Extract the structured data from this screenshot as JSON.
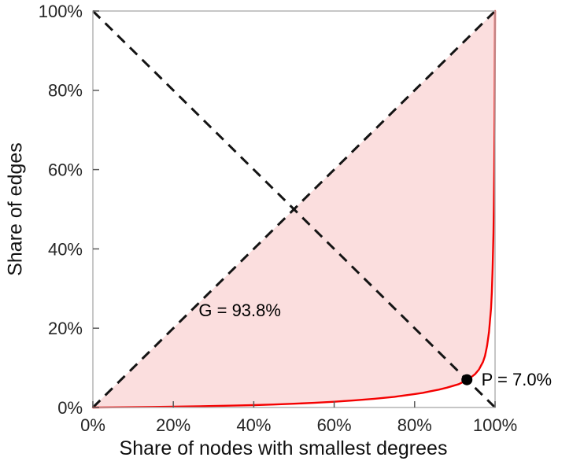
{
  "chart_data": {
    "type": "line",
    "title": "",
    "xlabel": "Share of nodes with smallest degrees",
    "ylabel": "Share of edges",
    "xlim": [
      0,
      100
    ],
    "ylim": [
      0,
      100
    ],
    "xticks": [
      0,
      20,
      40,
      60,
      80,
      100
    ],
    "yticks": [
      0,
      20,
      40,
      60,
      80,
      100
    ],
    "xtick_labels": [
      "0%",
      "20%",
      "40%",
      "60%",
      "80%",
      "100%"
    ],
    "ytick_labels": [
      "0%",
      "20%",
      "40%",
      "60%",
      "80%",
      "100%"
    ],
    "grid": false,
    "legend": "none",
    "gini_percent": 93.8,
    "p_percent": 7.0,
    "series": [
      {
        "name": "lorenz-curve",
        "color": "#f40000",
        "x": [
          0,
          5,
          10,
          15,
          20,
          25,
          30,
          35,
          40,
          45,
          50,
          55,
          60,
          65,
          70,
          75,
          80,
          82,
          84,
          86,
          88,
          90,
          91,
          92,
          93,
          94,
          95,
          96,
          97,
          97.5,
          98,
          98.5,
          99,
          99.2,
          99.4,
          99.6,
          99.7,
          99.8,
          99.9,
          99.95,
          100
        ],
        "y": [
          0,
          0.04,
          0.08,
          0.14,
          0.2,
          0.28,
          0.38,
          0.48,
          0.6,
          0.76,
          0.95,
          1.18,
          1.45,
          1.8,
          2.2,
          2.7,
          3.4,
          3.7,
          4.1,
          4.5,
          5.0,
          5.6,
          5.9,
          6.4,
          7.0,
          7.6,
          8.4,
          9.6,
          11.5,
          13.0,
          15.5,
          19.0,
          25.0,
          29.0,
          35.0,
          44.0,
          51.0,
          60.0,
          73.0,
          82.0,
          100
        ]
      }
    ],
    "reference_lines": [
      {
        "name": "equality-diagonal-line",
        "from": [
          0,
          0
        ],
        "to": [
          100,
          100
        ],
        "style": "dashed",
        "color": "#141414"
      },
      {
        "name": "anti-diagonal-line",
        "from": [
          0,
          100
        ],
        "to": [
          100,
          0
        ],
        "style": "dashed",
        "color": "#141414"
      }
    ],
    "shaded_region": {
      "between": "equality-diagonal-and-lorenz-curve",
      "fill": "#fbdede"
    },
    "point": {
      "x": 93.0,
      "y": 7.0,
      "color": "#000000"
    },
    "annotations": [
      {
        "id": "gini",
        "label": "G = 93.8%",
        "x": 26.3,
        "y": 24.5
      },
      {
        "id": "p-intersection",
        "label": "P = 7.0%",
        "x": 96.6,
        "y": 7.0
      }
    ]
  }
}
